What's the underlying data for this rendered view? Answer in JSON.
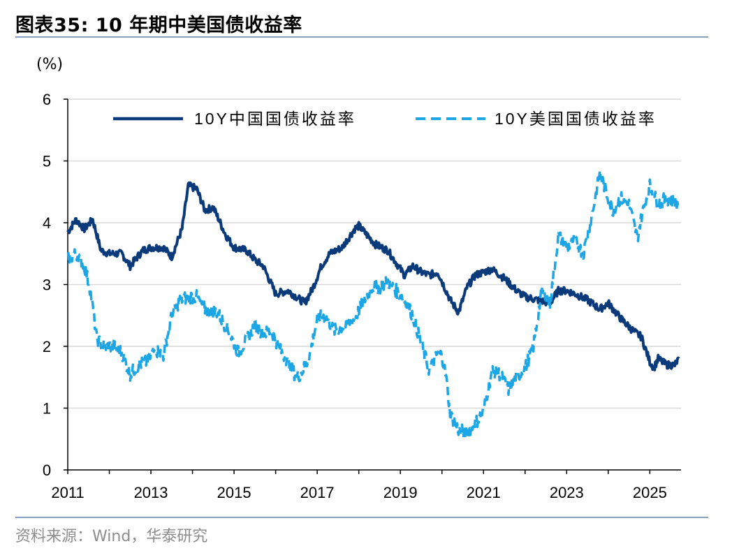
{
  "header": {
    "title": "图表35:   10 年期中美国债收益率"
  },
  "footer": {
    "source": "资料来源：Wind，华泰研究"
  },
  "colors": {
    "china": "#0a3a7a",
    "us": "#1ca6e6",
    "grid": "#d9d9d9",
    "rule": "#8aa0be"
  },
  "chart_data": {
    "type": "line",
    "title": "10 年期中美国债收益率",
    "ylabel": "(%)",
    "xlabel": "",
    "xlim": [
      2011,
      2025.75
    ],
    "ylim": [
      0,
      6
    ],
    "y_ticks": [
      "0",
      "1",
      "2",
      "3",
      "4",
      "5",
      "6"
    ],
    "x_ticks": [
      "2011",
      "2013",
      "2015",
      "2017",
      "2019",
      "2021",
      "2023",
      "2025"
    ],
    "grid": "horizontal",
    "legend_position": "top",
    "series": [
      {
        "name": "10Y中国国债收益率",
        "style": "solid",
        "color": "#0a3a7a",
        "x": [
          2011.0,
          2011.2,
          2011.4,
          2011.6,
          2011.8,
          2012.0,
          2012.3,
          2012.5,
          2012.8,
          2013.0,
          2013.3,
          2013.5,
          2013.75,
          2013.9,
          2014.1,
          2014.3,
          2014.5,
          2014.8,
          2015.0,
          2015.3,
          2015.5,
          2015.7,
          2015.9,
          2016.0,
          2016.3,
          2016.5,
          2016.7,
          2016.9,
          2017.1,
          2017.3,
          2017.6,
          2017.9,
          2018.0,
          2018.2,
          2018.4,
          2018.7,
          2018.9,
          2019.1,
          2019.3,
          2019.5,
          2019.7,
          2019.9,
          2020.0,
          2020.2,
          2020.4,
          2020.6,
          2020.8,
          2021.0,
          2021.2,
          2021.5,
          2021.8,
          2022.0,
          2022.3,
          2022.6,
          2022.8,
          2023.0,
          2023.2,
          2023.5,
          2023.8,
          2024.0,
          2024.3,
          2024.6,
          2024.8,
          2025.0,
          2025.1,
          2025.2,
          2025.4,
          2025.6,
          2025.7
        ],
        "y": [
          3.85,
          4.05,
          3.9,
          4.05,
          3.55,
          3.5,
          3.5,
          3.3,
          3.55,
          3.6,
          3.6,
          3.45,
          3.9,
          4.6,
          4.55,
          4.2,
          4.25,
          3.8,
          3.6,
          3.55,
          3.4,
          3.3,
          3.0,
          2.85,
          2.9,
          2.8,
          2.7,
          2.95,
          3.3,
          3.5,
          3.6,
          3.9,
          3.95,
          3.8,
          3.65,
          3.55,
          3.35,
          3.15,
          3.3,
          3.2,
          3.15,
          3.2,
          3.05,
          2.75,
          2.55,
          2.95,
          3.15,
          3.2,
          3.25,
          3.1,
          2.9,
          2.8,
          2.75,
          2.7,
          2.9,
          2.9,
          2.85,
          2.75,
          2.6,
          2.7,
          2.45,
          2.25,
          2.15,
          1.75,
          1.65,
          1.8,
          1.7,
          1.7,
          1.8
        ]
      },
      {
        "name": "10Y美国国债收益率",
        "style": "dashed",
        "color": "#1ca6e6",
        "x": [
          2011.0,
          2011.2,
          2011.4,
          2011.55,
          2011.7,
          2011.9,
          2012.1,
          2012.3,
          2012.5,
          2012.7,
          2012.9,
          2013.1,
          2013.3,
          2013.5,
          2013.7,
          2013.9,
          2014.1,
          2014.3,
          2014.6,
          2014.9,
          2015.1,
          2015.3,
          2015.5,
          2015.7,
          2015.9,
          2016.1,
          2016.3,
          2016.5,
          2016.6,
          2016.8,
          2017.0,
          2017.2,
          2017.4,
          2017.7,
          2017.9,
          2018.1,
          2018.3,
          2018.5,
          2018.7,
          2018.9,
          2019.1,
          2019.3,
          2019.5,
          2019.7,
          2019.9,
          2020.0,
          2020.1,
          2020.2,
          2020.4,
          2020.6,
          2020.8,
          2021.0,
          2021.2,
          2021.4,
          2021.6,
          2021.8,
          2022.0,
          2022.2,
          2022.4,
          2022.6,
          2022.8,
          2023.0,
          2023.2,
          2023.4,
          2023.6,
          2023.8,
          2023.9,
          2024.1,
          2024.3,
          2024.5,
          2024.7,
          2024.8,
          2025.0,
          2025.2,
          2025.4,
          2025.6,
          2025.7
        ],
        "y": [
          3.4,
          3.5,
          3.3,
          2.9,
          2.1,
          2.0,
          2.0,
          1.9,
          1.55,
          1.7,
          1.75,
          1.95,
          1.85,
          2.5,
          2.75,
          2.8,
          2.8,
          2.6,
          2.55,
          2.2,
          1.9,
          2.1,
          2.35,
          2.2,
          2.25,
          1.95,
          1.75,
          1.5,
          1.55,
          1.8,
          2.45,
          2.5,
          2.25,
          2.35,
          2.45,
          2.7,
          2.95,
          2.95,
          3.05,
          2.9,
          2.75,
          2.5,
          2.05,
          1.6,
          1.9,
          1.85,
          1.5,
          0.9,
          0.65,
          0.6,
          0.75,
          0.95,
          1.6,
          1.55,
          1.3,
          1.5,
          1.65,
          2.0,
          2.9,
          2.7,
          3.8,
          3.6,
          3.7,
          3.5,
          4.1,
          4.8,
          4.6,
          4.2,
          4.4,
          4.3,
          3.75,
          4.1,
          4.6,
          4.3,
          4.4,
          4.35,
          4.25
        ]
      }
    ]
  }
}
